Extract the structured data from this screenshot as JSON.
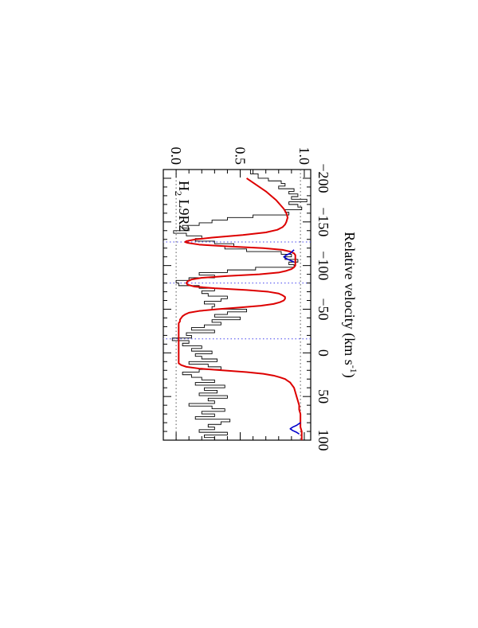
{
  "chart_data": {
    "type": "line",
    "orientation": "rotated 90 degrees clockwise",
    "xlabel_main": "Relative velocity (km s",
    "xlabel_sup": "-1",
    "xlabel_end": ")",
    "ylabel": "",
    "line_label_main": "H",
    "line_label_sub": "2",
    "line_label_end": " L9R2",
    "xlim": [
      -210,
      100
    ],
    "ylim": [
      -0.1,
      1.05
    ],
    "x_ticks": [
      -200,
      -150,
      -100,
      -50,
      0,
      50,
      100
    ],
    "x_tick_labels": [
      "−200",
      "−150",
      "−100",
      "−50",
      "0",
      "50",
      "100"
    ],
    "y_ticks": [
      0.0,
      0.5,
      1.0
    ],
    "y_tick_labels": [
      "0.0",
      "0.5",
      "1.0"
    ],
    "reference_lines": {
      "continuum_y": 0.97,
      "zero_y": 0.0,
      "velocity_markers": [
        -127,
        -80,
        -16
      ]
    },
    "colors": {
      "data": "#000000",
      "total_model": "#dd0000",
      "component_model": "#0000cc",
      "velocity_marker": "#4444ee",
      "level_line": "#555555"
    },
    "series": [
      {
        "style": "histogram",
        "x": [
          -210,
          -205,
          -200,
          -197,
          -194,
          -191,
          -188,
          -185,
          -182,
          -179,
          -176,
          -173,
          -170,
          -167,
          -164,
          -161,
          -158,
          -155,
          -152,
          -149,
          -146,
          -143,
          -140,
          -137,
          -134,
          -131,
          -128,
          -125,
          -122,
          -119,
          -116,
          -113,
          -110,
          -107,
          -104,
          -101,
          -98,
          -95,
          -92,
          -89,
          -86,
          -83,
          -80,
          -77,
          -74,
          -71,
          -68,
          -65,
          -62,
          -59,
          -56,
          -53,
          -50,
          -47,
          -44,
          -41,
          -38,
          -35,
          -32,
          -29,
          -26,
          -23,
          -20,
          -17,
          -14,
          -11,
          -8,
          -5,
          -2,
          1,
          4,
          7,
          10,
          13,
          16,
          19,
          22,
          25,
          28,
          31,
          34,
          37,
          40,
          43,
          46,
          49,
          52,
          55,
          58,
          61,
          64,
          67,
          70,
          73,
          76,
          79,
          82,
          85,
          88,
          91,
          94,
          97
        ],
        "y": [
          0.58,
          0.64,
          0.72,
          0.82,
          0.85,
          0.8,
          0.92,
          0.88,
          0.95,
          0.9,
          1.02,
          0.88,
          0.95,
          0.98,
          0.85,
          0.88,
          0.6,
          0.4,
          0.28,
          0.18,
          0.05,
          0.1,
          -0.02,
          0.08,
          0.2,
          0.15,
          0.3,
          0.45,
          0.38,
          0.55,
          0.82,
          0.9,
          0.85,
          0.95,
          0.88,
          0.92,
          0.62,
          0.4,
          0.18,
          0.3,
          0.1,
          0.0,
          0.02,
          0.18,
          0.3,
          0.2,
          0.25,
          0.4,
          0.35,
          0.22,
          0.3,
          0.28,
          0.55,
          0.4,
          0.3,
          0.5,
          0.28,
          0.35,
          0.22,
          0.12,
          0.3,
          0.08,
          0.12,
          -0.03,
          0.1,
          0.05,
          0.2,
          0.12,
          0.28,
          0.15,
          0.2,
          0.32,
          0.1,
          0.25,
          0.35,
          0.18,
          0.05,
          0.12,
          0.2,
          0.3,
          0.15,
          0.38,
          0.22,
          0.32,
          0.18,
          0.4,
          0.25,
          0.3,
          0.1,
          0.28,
          0.38,
          0.2,
          0.3,
          0.15,
          0.42,
          0.35,
          0.25,
          0.3,
          0.18,
          0.4,
          0.22,
          0.3
        ]
      },
      {
        "style": "line",
        "color_key": "total_model",
        "x": [
          -200,
          -195,
          -190,
          -185,
          -180,
          -175,
          -170,
          -165,
          -160,
          -155,
          -150,
          -147,
          -144,
          -141,
          -138,
          -135,
          -132,
          -130,
          -128,
          -127,
          -126,
          -124,
          -122,
          -120,
          -118,
          -116,
          -114,
          -112,
          -110,
          -108,
          -106,
          -104,
          -102,
          -100,
          -98,
          -96,
          -94,
          -92,
          -90,
          -88,
          -86,
          -84,
          -82,
          -80,
          -78,
          -76,
          -74,
          -72,
          -70,
          -68,
          -66,
          -64,
          -62,
          -60,
          -58,
          -56,
          -54,
          -52,
          -50,
          -48,
          -46,
          -44,
          -42,
          -40,
          -38,
          -36,
          -34,
          -32,
          -30,
          -28,
          -26,
          -24,
          -22,
          -20,
          -18,
          -16,
          -14,
          -12,
          -10,
          -8,
          -6,
          -4,
          -2,
          0,
          2,
          4,
          6,
          8,
          10,
          12,
          14,
          16,
          18,
          20,
          22,
          24,
          26,
          28,
          30,
          32,
          34,
          36,
          38,
          40,
          45,
          50,
          55,
          60,
          65,
          70,
          75,
          80,
          85,
          90,
          95,
          100
        ],
        "y": [
          0.55,
          0.6,
          0.65,
          0.7,
          0.74,
          0.78,
          0.81,
          0.84,
          0.86,
          0.87,
          0.86,
          0.85,
          0.83,
          0.79,
          0.7,
          0.52,
          0.28,
          0.15,
          0.08,
          0.07,
          0.09,
          0.18,
          0.4,
          0.68,
          0.83,
          0.89,
          0.92,
          0.93,
          0.93,
          0.93,
          0.93,
          0.93,
          0.93,
          0.93,
          0.92,
          0.9,
          0.86,
          0.8,
          0.65,
          0.4,
          0.2,
          0.12,
          0.09,
          0.08,
          0.09,
          0.14,
          0.3,
          0.55,
          0.72,
          0.8,
          0.83,
          0.85,
          0.85,
          0.84,
          0.81,
          0.76,
          0.66,
          0.5,
          0.32,
          0.18,
          0.1,
          0.07,
          0.05,
          0.04,
          0.03,
          0.03,
          0.02,
          0.02,
          0.02,
          0.02,
          0.02,
          0.02,
          0.02,
          0.02,
          0.02,
          0.02,
          0.02,
          0.02,
          0.02,
          0.02,
          0.02,
          0.02,
          0.02,
          0.02,
          0.02,
          0.02,
          0.02,
          0.02,
          0.02,
          0.02,
          0.04,
          0.08,
          0.18,
          0.36,
          0.55,
          0.68,
          0.76,
          0.81,
          0.85,
          0.87,
          0.89,
          0.9,
          0.91,
          0.92,
          0.93,
          0.94,
          0.95,
          0.96,
          0.96,
          0.97,
          0.97,
          0.97,
          0.97,
          0.98,
          0.98,
          0.98
        ]
      },
      {
        "style": "line",
        "color_key": "component_model",
        "x": [
          -118,
          -114,
          -112,
          -110,
          -108,
          -106,
          -104
        ],
        "y": [
          0.92,
          0.89,
          0.86,
          0.84,
          0.86,
          0.89,
          0.92
        ]
      },
      {
        "style": "line",
        "color_key": "component_model",
        "x": [
          80,
          83,
          85,
          87,
          89,
          91,
          93
        ],
        "y": [
          0.97,
          0.94,
          0.91,
          0.89,
          0.91,
          0.94,
          0.96
        ]
      }
    ]
  }
}
